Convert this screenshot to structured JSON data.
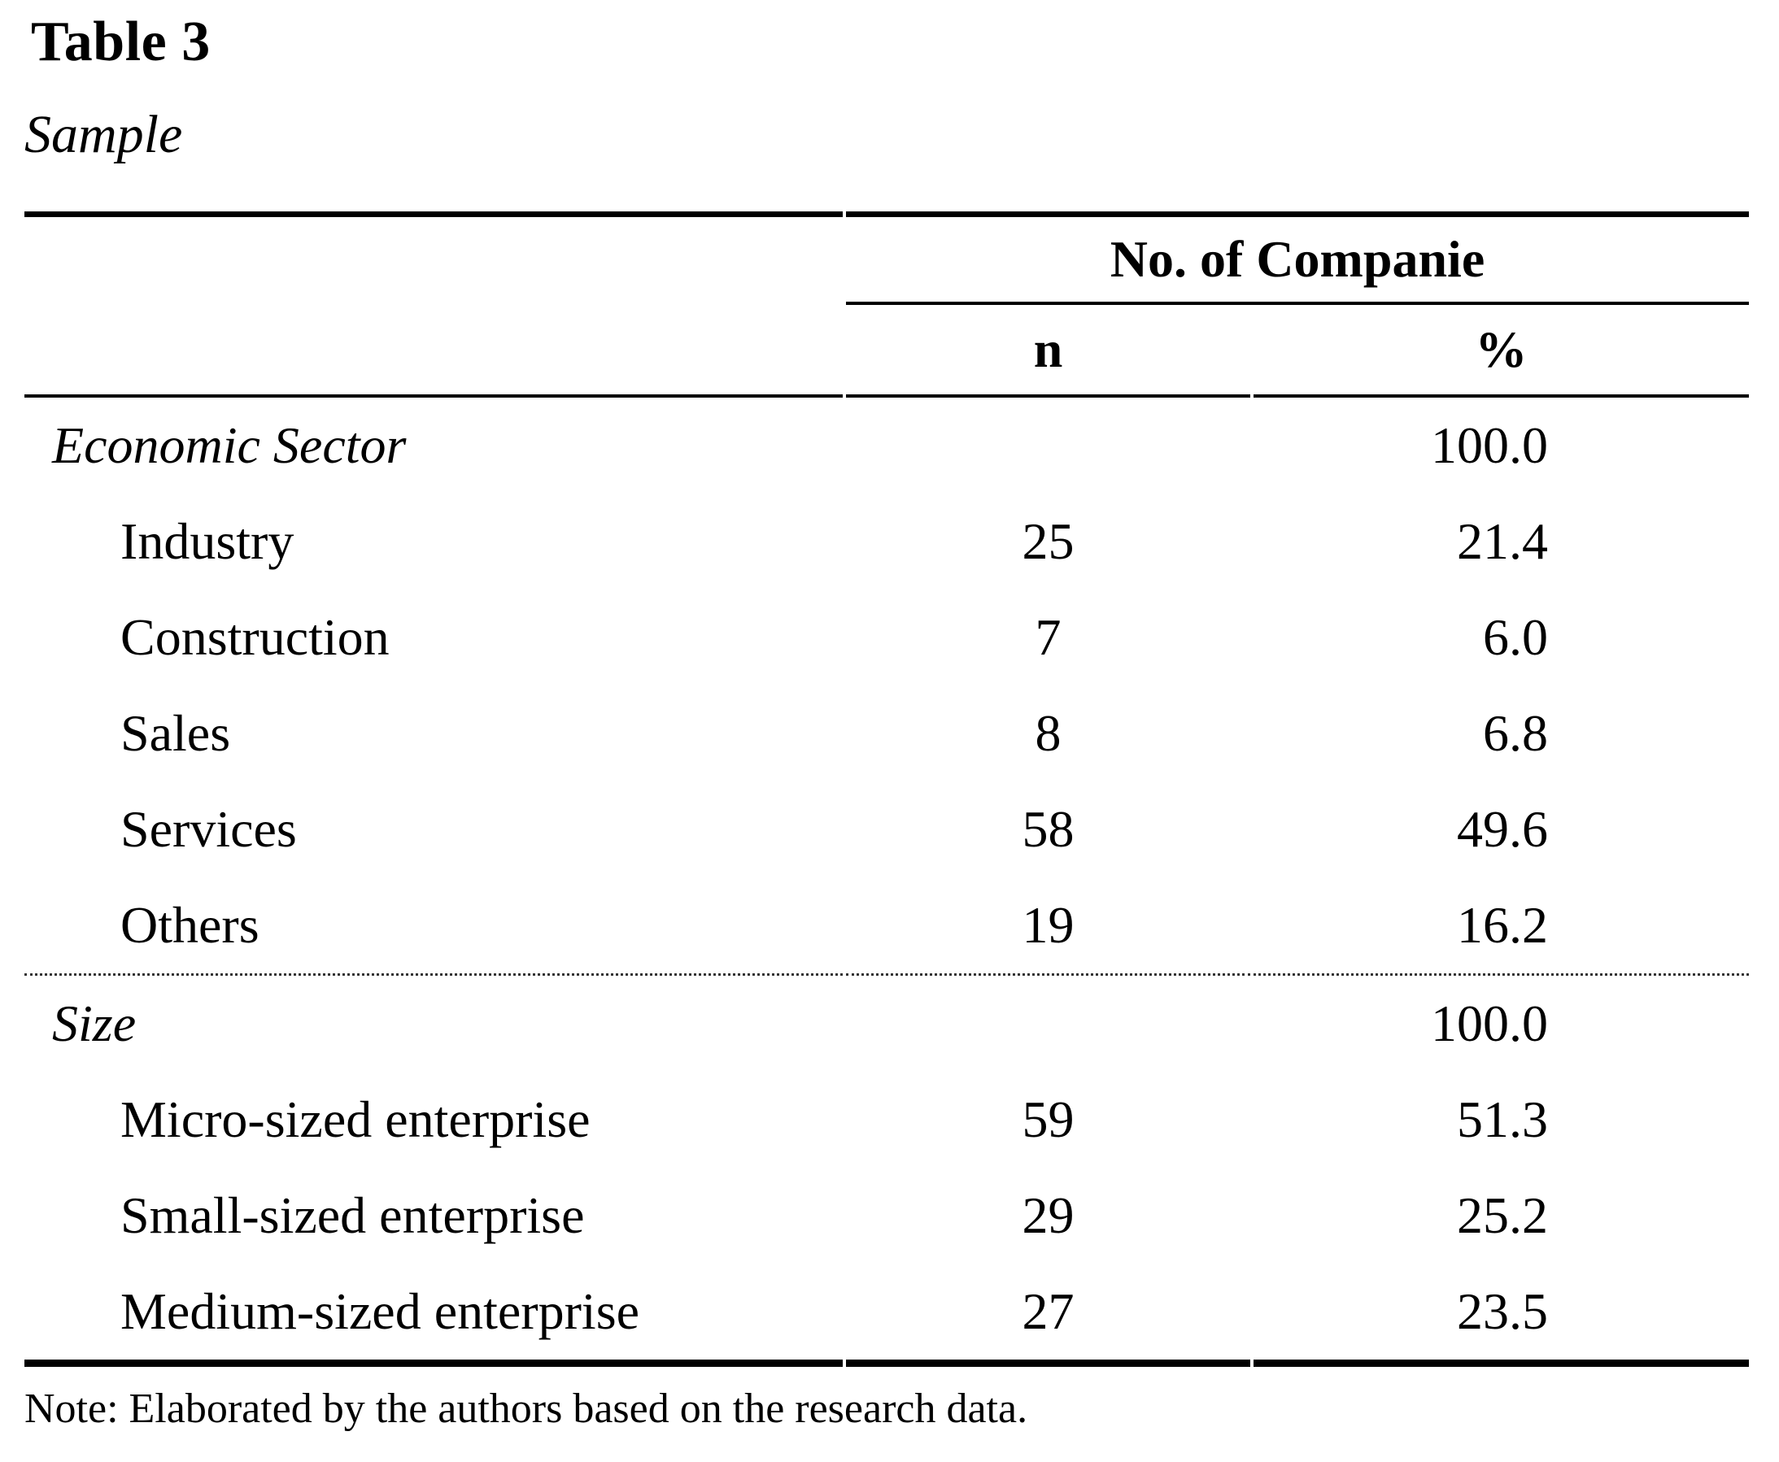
{
  "document": {
    "title": "Table 3",
    "subtitle": "Sample",
    "note": "Note: Elaborated by the authors based on the research data."
  },
  "table": {
    "group_header": "No. of Companie",
    "columns": {
      "n": "n",
      "pct": "%"
    },
    "rows": [
      {
        "label": "Economic Sector",
        "n": "",
        "pct": "100.0",
        "type": "section"
      },
      {
        "label": "Industry",
        "n": "25",
        "pct": "21.4",
        "type": "item"
      },
      {
        "label": "Construction",
        "n": "7",
        "pct": "6.0",
        "type": "item"
      },
      {
        "label": "Sales",
        "n": "8",
        "pct": "6.8",
        "type": "item"
      },
      {
        "label": "Services",
        "n": "58",
        "pct": "49.6",
        "type": "item"
      },
      {
        "label": "Others",
        "n": "19",
        "pct": "16.2",
        "type": "item"
      },
      {
        "label": "Size",
        "n": "",
        "pct": "100.0",
        "type": "section"
      },
      {
        "label": "Micro-sized enterprise",
        "n": "59",
        "pct": "51.3",
        "type": "item"
      },
      {
        "label": "Small-sized enterprise",
        "n": "29",
        "pct": "25.2",
        "type": "item"
      },
      {
        "label": "Medium-sized enterprise",
        "n": "27",
        "pct": "23.5",
        "type": "item"
      }
    ]
  },
  "colors": {
    "text": "#000000",
    "rule": "#000000"
  }
}
